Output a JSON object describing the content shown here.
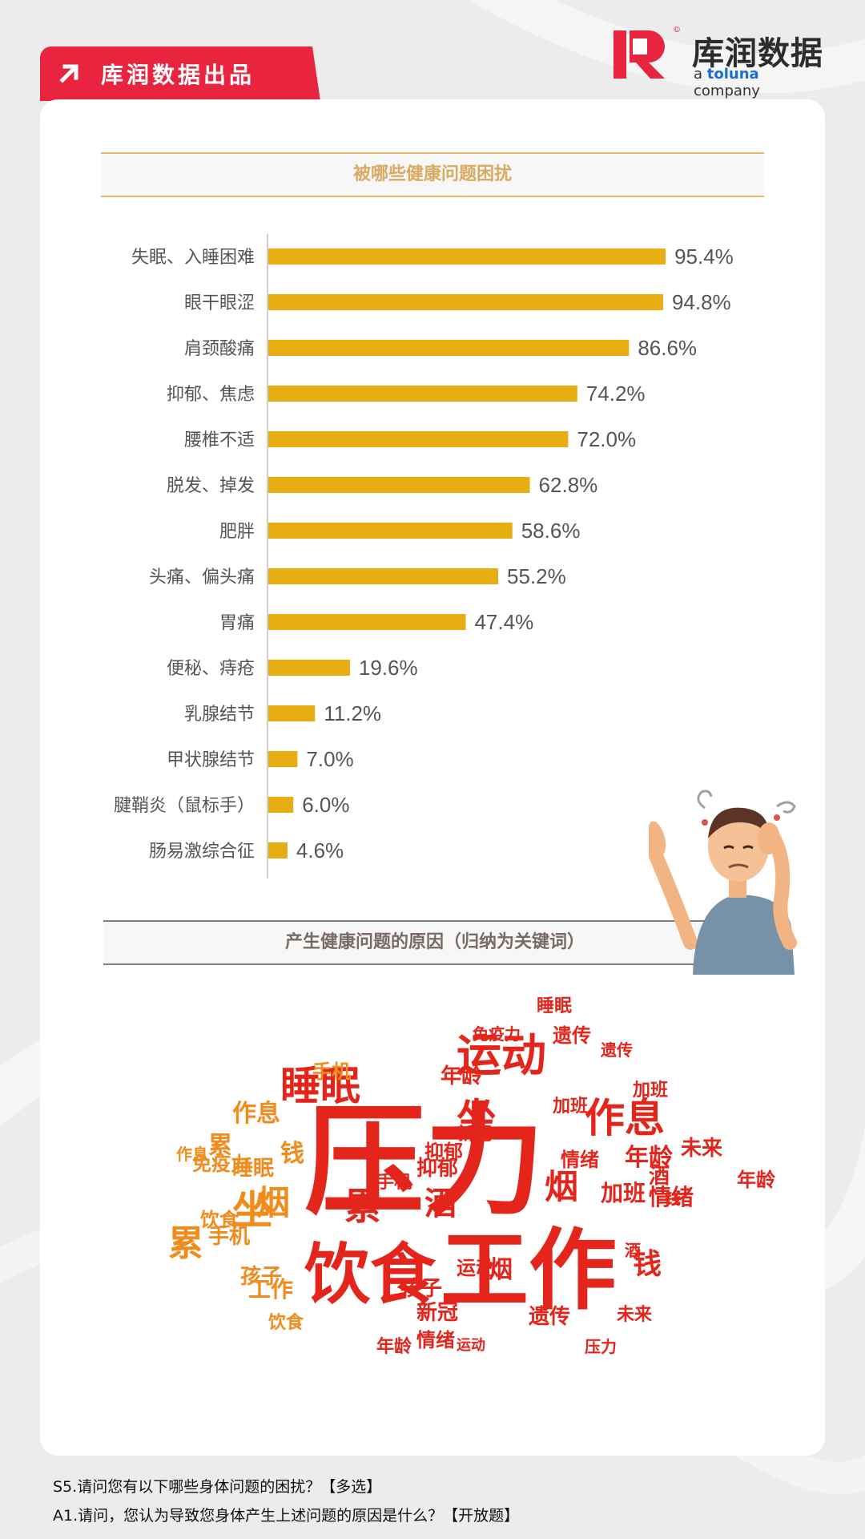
{
  "header": {
    "tag_text": "库润数据出品",
    "logo_cn": "库润数据",
    "logo_en_prefix": "a ",
    "logo_en_brand": "toluna",
    "logo_en_suffix": " company",
    "logo_mark": "©"
  },
  "colors": {
    "brand_red": "#e8243f",
    "bar": "#e6ae12",
    "cloud_red": "#e3251b",
    "cloud_orange": "#f08b1c"
  },
  "section1": {
    "title": "被哪些健康问题困扰"
  },
  "section2": {
    "title": "产生健康问题的原因（归纳为关键词）"
  },
  "chart_data": {
    "type": "bar",
    "orientation": "horizontal",
    "title": "被哪些健康问题困扰",
    "categories": [
      "失眠、入睡困难",
      "眼干眼涩",
      "肩颈酸痛",
      "抑郁、焦虑",
      "腰椎不适",
      "脱发、掉发",
      "肥胖",
      "头痛、偏头痛",
      "胃痛",
      "便秘、痔疮",
      "乳腺结节",
      "甲状腺结节",
      "腱鞘炎（鼠标手）",
      "肠易激综合征"
    ],
    "values": [
      95.4,
      94.8,
      86.6,
      74.2,
      72.0,
      62.8,
      58.6,
      55.2,
      47.4,
      19.6,
      11.2,
      7.0,
      6.0,
      4.6
    ],
    "labels": [
      "95.4%",
      "94.8%",
      "86.6%",
      "74.2%",
      "72.0%",
      "62.8%",
      "58.6%",
      "55.2%",
      "47.4%",
      "19.6%",
      "11.2%",
      "7.0%",
      "6.0%",
      "4.6%"
    ],
    "unit": "%",
    "xlim": [
      0,
      100
    ],
    "grid": false
  },
  "word_cloud": {
    "words": [
      "压力",
      "工作",
      "饮食",
      "运动",
      "作息",
      "睡眠",
      "坐",
      "累",
      "酒",
      "烟",
      "年龄",
      "手机",
      "钱",
      "加班",
      "情绪",
      "免疫力",
      "遗传",
      "孩子",
      "新冠",
      "未来",
      "抑郁"
    ]
  },
  "footnotes": [
    "S5.请问您有以下哪些身体问题的困扰？【多选】",
    "A1.请问，您认为导致您身体产生上述问题的原因是什么？【开放题】"
  ]
}
